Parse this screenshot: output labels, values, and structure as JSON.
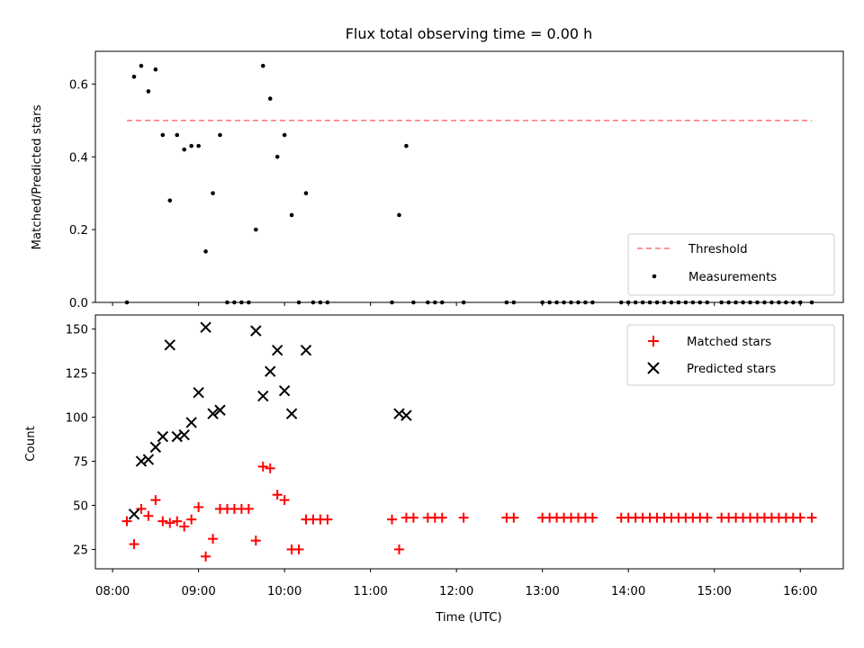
{
  "chart_data": [
    {
      "type": "scatter",
      "title": "Flux total observing time = 0.00 h",
      "xlabel": "",
      "ylabel": "Matched/Predicted stars",
      "xlim": [
        "07:48",
        "16:30"
      ],
      "ylim": [
        0,
        0.69
      ],
      "yticks": [
        "0.0",
        "0.2",
        "0.4",
        "0.6"
      ],
      "legend_position": "bottom-right",
      "threshold": {
        "name": "Threshold",
        "value": 0.5,
        "x_start": "08:10",
        "x_end": "16:08",
        "color": "#ff7070"
      },
      "series": [
        {
          "name": "Measurements",
          "color": "#000000",
          "points": [
            [
              "08:10",
              0.0
            ],
            [
              "08:15",
              0.62
            ],
            [
              "08:20",
              0.65
            ],
            [
              "08:25",
              0.58
            ],
            [
              "08:30",
              0.64
            ],
            [
              "08:35",
              0.46
            ],
            [
              "08:40",
              0.28
            ],
            [
              "08:45",
              0.46
            ],
            [
              "08:50",
              0.42
            ],
            [
              "08:55",
              0.43
            ],
            [
              "09:00",
              0.43
            ],
            [
              "09:05",
              0.14
            ],
            [
              "09:10",
              0.3
            ],
            [
              "09:15",
              0.46
            ],
            [
              "09:20",
              0.0
            ],
            [
              "09:25",
              0.0
            ],
            [
              "09:30",
              0.0
            ],
            [
              "09:35",
              0.0
            ],
            [
              "09:40",
              0.2
            ],
            [
              "09:45",
              0.65
            ],
            [
              "09:50",
              0.56
            ],
            [
              "09:55",
              0.4
            ],
            [
              "10:00",
              0.46
            ],
            [
              "10:05",
              0.24
            ],
            [
              "10:10",
              0.0
            ],
            [
              "10:15",
              0.3
            ],
            [
              "10:20",
              0.0
            ],
            [
              "10:25",
              0.0
            ],
            [
              "10:30",
              0.0
            ],
            [
              "11:15",
              0.0
            ],
            [
              "11:20",
              0.24
            ],
            [
              "11:25",
              0.43
            ],
            [
              "11:30",
              0.0
            ],
            [
              "11:40",
              0.0
            ],
            [
              "11:45",
              0.0
            ],
            [
              "11:50",
              0.0
            ],
            [
              "12:05",
              0.0
            ],
            [
              "12:35",
              0.0
            ],
            [
              "12:40",
              0.0
            ],
            [
              "13:00",
              0.0
            ],
            [
              "13:05",
              0.0
            ],
            [
              "13:10",
              0.0
            ],
            [
              "13:15",
              0.0
            ],
            [
              "13:20",
              0.0
            ],
            [
              "13:25",
              0.0
            ],
            [
              "13:30",
              0.0
            ],
            [
              "13:35",
              0.0
            ],
            [
              "13:55",
              0.0
            ],
            [
              "14:00",
              0.0
            ],
            [
              "14:05",
              0.0
            ],
            [
              "14:10",
              0.0
            ],
            [
              "14:15",
              0.0
            ],
            [
              "14:20",
              0.0
            ],
            [
              "14:25",
              0.0
            ],
            [
              "14:30",
              0.0
            ],
            [
              "14:35",
              0.0
            ],
            [
              "14:40",
              0.0
            ],
            [
              "14:45",
              0.0
            ],
            [
              "14:50",
              0.0
            ],
            [
              "14:55",
              0.0
            ],
            [
              "15:05",
              0.0
            ],
            [
              "15:10",
              0.0
            ],
            [
              "15:15",
              0.0
            ],
            [
              "15:20",
              0.0
            ],
            [
              "15:25",
              0.0
            ],
            [
              "15:30",
              0.0
            ],
            [
              "15:35",
              0.0
            ],
            [
              "15:40",
              0.0
            ],
            [
              "15:45",
              0.0
            ],
            [
              "15:50",
              0.0
            ],
            [
              "15:55",
              0.0
            ],
            [
              "16:00",
              0.0
            ],
            [
              "16:08",
              0.0
            ]
          ]
        }
      ]
    },
    {
      "type": "scatter",
      "title": "",
      "xlabel": "Time (UTC)",
      "ylabel": "Count",
      "xlim": [
        "07:48",
        "16:30"
      ],
      "ylim": [
        14,
        158
      ],
      "xticks": [
        "08:00",
        "09:00",
        "10:00",
        "11:00",
        "12:00",
        "13:00",
        "14:00",
        "15:00",
        "16:00"
      ],
      "yticks": [
        "25",
        "50",
        "75",
        "100",
        "125",
        "150"
      ],
      "legend_position": "top-right",
      "series": [
        {
          "name": "Matched stars",
          "color": "#ff0000",
          "marker": "+",
          "points": [
            [
              "08:10",
              41
            ],
            [
              "08:15",
              28
            ],
            [
              "08:20",
              48
            ],
            [
              "08:25",
              44
            ],
            [
              "08:30",
              53
            ],
            [
              "08:35",
              41
            ],
            [
              "08:40",
              40
            ],
            [
              "08:45",
              41
            ],
            [
              "08:50",
              38
            ],
            [
              "08:55",
              42
            ],
            [
              "09:00",
              49
            ],
            [
              "09:05",
              21
            ],
            [
              "09:10",
              31
            ],
            [
              "09:15",
              48
            ],
            [
              "09:20",
              48
            ],
            [
              "09:25",
              48
            ],
            [
              "09:30",
              48
            ],
            [
              "09:35",
              48
            ],
            [
              "09:40",
              30
            ],
            [
              "09:45",
              72
            ],
            [
              "09:50",
              71
            ],
            [
              "09:55",
              56
            ],
            [
              "10:00",
              53
            ],
            [
              "10:05",
              25
            ],
            [
              "10:10",
              25
            ],
            [
              "10:15",
              42
            ],
            [
              "10:20",
              42
            ],
            [
              "10:25",
              42
            ],
            [
              "10:30",
              42
            ],
            [
              "11:15",
              42
            ],
            [
              "11:20",
              25
            ],
            [
              "11:25",
              43
            ],
            [
              "11:30",
              43
            ],
            [
              "11:40",
              43
            ],
            [
              "11:45",
              43
            ],
            [
              "11:50",
              43
            ],
            [
              "12:05",
              43
            ],
            [
              "12:35",
              43
            ],
            [
              "12:40",
              43
            ],
            [
              "13:00",
              43
            ],
            [
              "13:05",
              43
            ],
            [
              "13:10",
              43
            ],
            [
              "13:15",
              43
            ],
            [
              "13:20",
              43
            ],
            [
              "13:25",
              43
            ],
            [
              "13:30",
              43
            ],
            [
              "13:35",
              43
            ],
            [
              "13:55",
              43
            ],
            [
              "14:00",
              43
            ],
            [
              "14:05",
              43
            ],
            [
              "14:10",
              43
            ],
            [
              "14:15",
              43
            ],
            [
              "14:20",
              43
            ],
            [
              "14:25",
              43
            ],
            [
              "14:30",
              43
            ],
            [
              "14:35",
              43
            ],
            [
              "14:40",
              43
            ],
            [
              "14:45",
              43
            ],
            [
              "14:50",
              43
            ],
            [
              "14:55",
              43
            ],
            [
              "15:05",
              43
            ],
            [
              "15:10",
              43
            ],
            [
              "15:15",
              43
            ],
            [
              "15:20",
              43
            ],
            [
              "15:25",
              43
            ],
            [
              "15:30",
              43
            ],
            [
              "15:35",
              43
            ],
            [
              "15:40",
              43
            ],
            [
              "15:45",
              43
            ],
            [
              "15:50",
              43
            ],
            [
              "15:55",
              43
            ],
            [
              "16:00",
              43
            ],
            [
              "16:08",
              43
            ]
          ]
        },
        {
          "name": "Predicted stars",
          "color": "#000000",
          "marker": "x",
          "points": [
            [
              "08:15",
              45
            ],
            [
              "08:20",
              75
            ],
            [
              "08:25",
              76
            ],
            [
              "08:30",
              83
            ],
            [
              "08:35",
              89
            ],
            [
              "08:40",
              141
            ],
            [
              "08:45",
              89
            ],
            [
              "08:50",
              90
            ],
            [
              "08:55",
              97
            ],
            [
              "09:00",
              114
            ],
            [
              "09:05",
              151
            ],
            [
              "09:10",
              102
            ],
            [
              "09:15",
              104
            ],
            [
              "09:40",
              149
            ],
            [
              "09:45",
              112
            ],
            [
              "09:50",
              126
            ],
            [
              "09:55",
              138
            ],
            [
              "10:00",
              115
            ],
            [
              "10:05",
              102
            ],
            [
              "10:15",
              138
            ],
            [
              "11:20",
              102
            ],
            [
              "11:25",
              101
            ]
          ]
        }
      ]
    }
  ]
}
